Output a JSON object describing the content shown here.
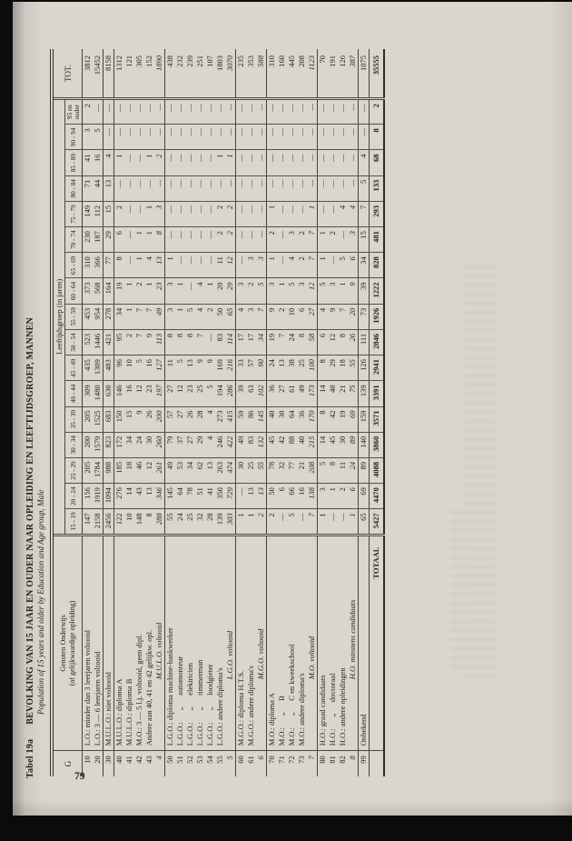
{
  "page": {
    "number": "79"
  },
  "header": {
    "tabel_label": "Tabel 19a",
    "title": "BEVOLKING VAN 15 JAAR EN OUDER NAAR OPLEIDING EN LEEFTIJDSGROEP, MANNEN",
    "subtitle": "Population of 15 years and older by Education and Age group, Male"
  },
  "table": {
    "g_header": "G",
    "education_header_line1": "Genoten Onderwijs",
    "education_header_line2": "(of gelijkwaardige opleiding)",
    "age_span_header": "Leeftijdsgroep  (in jaren)",
    "age_columns": [
      "15 - 19",
      "20 - 24",
      "25 - 29",
      "30 - 34",
      "35 - 39",
      "40 - 44",
      "45 - 49",
      "50 - 54",
      "55 - 59",
      "60 - 64",
      "65 - 69",
      "70 - 74",
      "75 - 79",
      "80 - 84",
      "85 - 89",
      "90 - 94",
      "95 en ouder"
    ],
    "total_header": "TOT.",
    "rows": [
      {
        "g": "10",
        "style": "normal",
        "group": true,
        "label": "L.O.: minder dan 3 leerjaren voltooid",
        "values": [
          "147",
          "156",
          "205",
          "200",
          "205",
          "309",
          "435",
          "523",
          "453",
          "373",
          "310",
          "230",
          "149",
          "71",
          "41",
          "3",
          "2",
          "3812"
        ]
      },
      {
        "g": "20",
        "style": "normal",
        "group": false,
        "label": "L.O.: 3 — 6 leerjaren voltooid",
        "values": [
          "2158",
          "1919",
          "1784",
          "1579",
          "1525",
          "1480",
          "1309",
          "1446",
          "954",
          "568",
          "366",
          "187",
          "112",
          "44",
          "16",
          "5",
          "—",
          "15452"
        ]
      },
      {
        "g": "30",
        "style": "normal",
        "group": true,
        "label": "M.U.L.O.: niet voltooid",
        "values": [
          "2456",
          "1094",
          "988",
          "823",
          "683",
          "630",
          "483",
          "421",
          "278",
          "164",
          "77",
          "29",
          "15",
          "13",
          "4",
          "—",
          "—",
          "8158"
        ]
      },
      {
        "g": "40",
        "style": "normal",
        "group": true,
        "label": "M.U.L.O.: diploma A",
        "values": [
          "122",
          "276",
          "185",
          "172",
          "150",
          "146",
          "96",
          "95",
          "34",
          "19",
          "8",
          "6",
          "2",
          "—",
          "1",
          "—",
          "—",
          "1312"
        ]
      },
      {
        "g": "41",
        "style": "normal",
        "group": false,
        "label": "M.U.L.O.: diploma B",
        "values": [
          "10",
          "14",
          "18",
          "34",
          "15",
          "16",
          "10",
          "2",
          "1",
          "1",
          "—",
          "—",
          "—",
          "—",
          "—",
          "—",
          "—",
          "121"
        ]
      },
      {
        "g": "42",
        "style": "normal",
        "group": false,
        "label": "M.O.: 3 — 5 l.j. voltooid, geen dipl.",
        "values": [
          "148",
          "43",
          "46",
          "24",
          "9",
          "12",
          "5",
          "7",
          "7",
          "2",
          "1",
          "1",
          "—",
          "—",
          "—",
          "—",
          "—",
          "305"
        ]
      },
      {
        "g": "43",
        "style": "normal",
        "group": false,
        "label": "Andere aan 40, 41 en 42 gelijkw. opl.",
        "values": [
          "8",
          "13",
          "12",
          "30",
          "26",
          "23",
          "16",
          "9",
          "7",
          "1",
          "4",
          "1",
          "1",
          "—",
          "1",
          "—",
          "—",
          "152"
        ]
      },
      {
        "g": "4",
        "style": "subtotal",
        "group": false,
        "label": "M.U.L.O. voltooid",
        "values": [
          "288",
          "346",
          "261",
          "260",
          "200",
          "197",
          "127",
          "113",
          "49",
          "23",
          "13",
          "8",
          "3",
          "—",
          "2",
          "—",
          "—",
          "1890"
        ]
      },
      {
        "g": "50",
        "style": "normal",
        "group": true,
        "label": "L.G.O.: diploma machine-bankwerker",
        "values": [
          "55",
          "145",
          "49",
          "79",
          "57",
          "27",
          "11",
          "8",
          "3",
          "3",
          "1",
          "—",
          "—",
          "—",
          "—",
          "—",
          "—",
          "438"
        ]
      },
      {
        "g": "51",
        "style": "normal",
        "group": false,
        "label": "L.G.O.:      „      automonteur",
        "values": [
          "24",
          "64",
          "53",
          "37",
          "27",
          "12",
          "5",
          "8",
          "1",
          "1",
          "—",
          "—",
          "—",
          "—",
          "—",
          "—",
          "—",
          "232"
        ]
      },
      {
        "g": "52",
        "style": "normal",
        "group": false,
        "label": "L.G.O.:      „      elektricien",
        "values": [
          "25",
          "78",
          "34",
          "27",
          "26",
          "23",
          "13",
          "8",
          "5",
          "—",
          "—",
          "—",
          "—",
          "—",
          "—",
          "—",
          "—",
          "239"
        ]
      },
      {
        "g": "53",
        "style": "normal",
        "group": false,
        "label": "L.G.O.:      „      timmerman",
        "values": [
          "32",
          "51",
          "62",
          "29",
          "28",
          "25",
          "9",
          "7",
          "4",
          "4",
          "—",
          "—",
          "—",
          "—",
          "—",
          "—",
          "—",
          "251"
        ]
      },
      {
        "g": "54",
        "style": "normal",
        "group": false,
        "label": "L.G.O.:      „      loodgieter",
        "values": [
          "28",
          "41",
          "13",
          "4",
          "4",
          "5",
          "9",
          "—",
          "2",
          "1",
          "—",
          "—",
          "—",
          "—",
          "—",
          "—",
          "—",
          "107"
        ]
      },
      {
        "g": "55",
        "style": "normal",
        "group": false,
        "label": "L.G.O.: andere diploma's",
        "values": [
          "139",
          "350",
          "263",
          "246",
          "273",
          "194",
          "169",
          "83",
          "50",
          "20",
          "11",
          "2",
          "2",
          "—",
          "1",
          "—",
          "—",
          "1803"
        ]
      },
      {
        "g": "5",
        "style": "subtotal",
        "group": false,
        "label": "L.G.O. voltooid",
        "values": [
          "303",
          "729",
          "474",
          "422",
          "415",
          "286",
          "216",
          "114",
          "65",
          "29",
          "12",
          "2",
          "2",
          "—",
          "1",
          "—",
          "—",
          "3070"
        ]
      },
      {
        "g": "60",
        "style": "normal",
        "group": true,
        "label": "M.G.O.: diploma H.T.S.",
        "values": [
          "1",
          "—",
          "30",
          "49",
          "59",
          "39",
          "33",
          "17",
          "4",
          "3",
          "—",
          "—",
          "—",
          "—",
          "—",
          "—",
          "—",
          "235"
        ]
      },
      {
        "g": "61",
        "style": "normal",
        "group": false,
        "label": "M.G.O.: andere diploma's",
        "values": [
          "1",
          "13",
          "25",
          "83",
          "86",
          "63",
          "57",
          "17",
          "3",
          "2",
          "3",
          "—",
          "—",
          "—",
          "—",
          "—",
          "—",
          "353"
        ]
      },
      {
        "g": "6",
        "style": "subtotal",
        "group": false,
        "label": "M.G.O. voltooid",
        "values": [
          "2",
          "13",
          "55",
          "132",
          "145",
          "102",
          "90",
          "34",
          "7",
          "5",
          "3",
          "—",
          "—",
          "—",
          "—",
          "—",
          "—",
          "588"
        ]
      },
      {
        "g": "70",
        "style": "normal",
        "group": true,
        "label": "M.O.: diploma A",
        "values": [
          "2",
          "50",
          "78",
          "45",
          "40",
          "36",
          "24",
          "19",
          "9",
          "3",
          "1",
          "2",
          "1",
          "—",
          "—",
          "—",
          "—",
          "310"
        ]
      },
      {
        "g": "71",
        "style": "normal",
        "group": false,
        "label": "M.O.:      „      B",
        "values": [
          "—",
          "6",
          "32",
          "42",
          "30",
          "27",
          "13",
          "7",
          "2",
          "1",
          "—",
          "—",
          "—",
          "—",
          "—",
          "—",
          "—",
          "160"
        ]
      },
      {
        "g": "72",
        "style": "normal",
        "group": false,
        "label": "M.O.:      „      C en kweekschool",
        "values": [
          "5",
          "66",
          "77",
          "88",
          "64",
          "61",
          "38",
          "24",
          "10",
          "5",
          "4",
          "3",
          "—",
          "—",
          "—",
          "—",
          "—",
          "445"
        ]
      },
      {
        "g": "73",
        "style": "normal",
        "group": false,
        "label": "M.O.: andere diploma's",
        "values": [
          "—",
          "16",
          "21",
          "40",
          "36",
          "49",
          "25",
          "8",
          "6",
          "3",
          "2",
          "2",
          "—",
          "—",
          "—",
          "—",
          "—",
          "208"
        ]
      },
      {
        "g": "7",
        "style": "subtotal",
        "group": false,
        "label": "M.O. voltooid",
        "values": [
          "7",
          "138",
          "208",
          "215",
          "170",
          "173",
          "100",
          "58",
          "27",
          "12",
          "7",
          "7",
          "1",
          "—",
          "—",
          "—",
          "—",
          "1123"
        ]
      },
      {
        "g": "80",
        "style": "normal",
        "group": true,
        "label": "H.O.: graad candidaats",
        "values": [
          "1",
          "3",
          "5",
          "14",
          "8",
          "14",
          "8",
          "6",
          "4",
          "5",
          "1",
          "1",
          "—",
          "—",
          "—",
          "—",
          "—",
          "70"
        ]
      },
      {
        "g": "81",
        "style": "normal",
        "group": false,
        "label": "H.O.:      „      doctoraal",
        "values": [
          "—",
          "1",
          "8",
          "45",
          "42",
          "40",
          "29",
          "12",
          "9",
          "3",
          "—",
          "2",
          "—",
          "—",
          "—",
          "—",
          "—",
          "191"
        ]
      },
      {
        "g": "82",
        "style": "normal",
        "group": false,
        "label": "H.O.: andere opleidingen",
        "values": [
          "—",
          "2",
          "11",
          "30",
          "19",
          "21",
          "18",
          "8",
          "7",
          "1",
          "5",
          "—",
          "4",
          "—",
          "—",
          "—",
          "—",
          "126"
        ]
      },
      {
        "g": "8",
        "style": "subtotal",
        "group": false,
        "label": "H.O. minstens candidaats",
        "values": [
          "1",
          "6",
          "24",
          "89",
          "69",
          "75",
          "55",
          "26",
          "20",
          "9",
          "6",
          "3",
          "4",
          "—",
          "—",
          "—",
          "—",
          "387"
        ]
      },
      {
        "g": "99",
        "style": "normal",
        "group": true,
        "label": "Onbekend",
        "values": [
          "65",
          "69",
          "89",
          "140",
          "159",
          "139",
          "126",
          "111",
          "73",
          "39",
          "34",
          "15",
          "7",
          "5",
          "4",
          "—",
          "—",
          "1075"
        ]
      },
      {
        "g": "",
        "style": "grandtotal",
        "group": true,
        "label": "TOTAAL",
        "values": [
          "5427",
          "4470",
          "4088",
          "3860",
          "3571",
          "3391",
          "2941",
          "2846",
          "1926",
          "1222",
          "828",
          "481",
          "293",
          "133",
          "68",
          "8",
          "2",
          "35555"
        ]
      }
    ]
  }
}
